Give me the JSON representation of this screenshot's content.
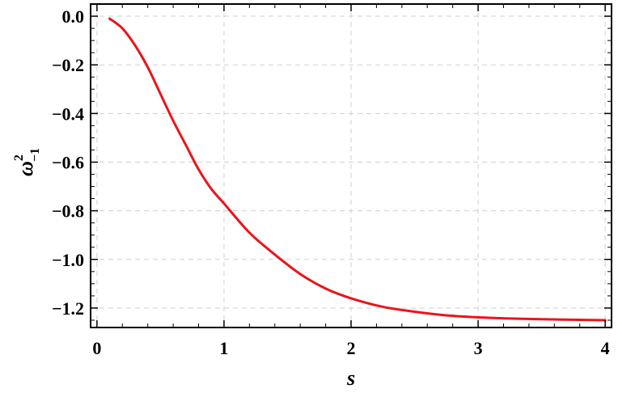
{
  "chart_data": {
    "type": "line",
    "title": "",
    "xlabel": "s",
    "ylabel": {
      "base": "ω",
      "superscript": "2",
      "subscript": "−1"
    },
    "xlim": [
      -0.05,
      4.05
    ],
    "ylim": [
      -1.28,
      0.05
    ],
    "x_ticks": [
      0,
      1,
      2,
      3,
      4
    ],
    "x_tick_labels": [
      "0",
      "1",
      "2",
      "3",
      "4"
    ],
    "y_ticks": [
      0.0,
      -0.2,
      -0.4,
      -0.6,
      -0.8,
      -1.0,
      -1.2
    ],
    "y_tick_labels": [
      "0.0",
      "−0.2",
      "−0.4",
      "−0.6",
      "−0.8",
      "−1.0",
      "−1.2"
    ],
    "grid": true,
    "legend": "none",
    "series": [
      {
        "color": "#e8151b",
        "x": [
          0.1,
          0.2,
          0.3,
          0.4,
          0.5,
          0.6,
          0.7,
          0.8,
          0.9,
          1.0,
          1.2,
          1.4,
          1.6,
          1.8,
          2.0,
          2.25,
          2.5,
          2.75,
          3.0,
          3.25,
          3.5,
          3.75,
          4.0
        ],
        "y": [
          -0.01,
          -0.05,
          -0.12,
          -0.21,
          -0.32,
          -0.43,
          -0.53,
          -0.63,
          -0.71,
          -0.77,
          -0.89,
          -0.98,
          -1.06,
          -1.12,
          -1.16,
          -1.195,
          -1.215,
          -1.23,
          -1.238,
          -1.243,
          -1.246,
          -1.248,
          -1.25
        ]
      }
    ]
  }
}
